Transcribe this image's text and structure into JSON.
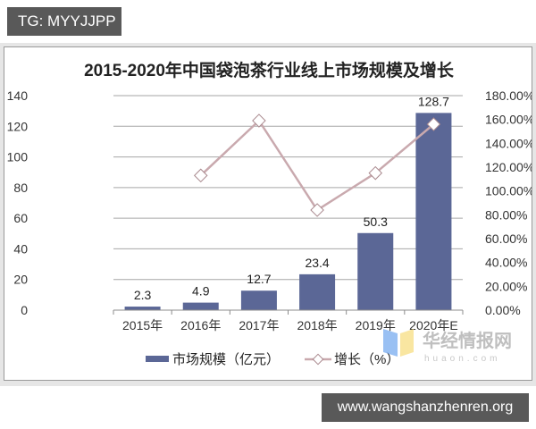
{
  "header_badge": "TG: MYYJJPP",
  "footer_badge": "www.wangshanzhenren.org",
  "watermark": {
    "cn": "华经情报网",
    "en": "huaon.com"
  },
  "colors": {
    "bar": "#5b6796",
    "line": "#c9a9ae",
    "grid": "#a6a6a6"
  },
  "chart_data": {
    "type": "bar",
    "title": "2015-2020年中国袋泡茶行业线上市场规模及增长",
    "categories": [
      "2015年",
      "2016年",
      "2017年",
      "2018年",
      "2019年",
      "2020年E"
    ],
    "series": [
      {
        "name": "市场规模（亿元）",
        "type": "bar",
        "axis": "left",
        "values": [
          2.3,
          4.9,
          12.7,
          23.4,
          50.3,
          128.7
        ]
      },
      {
        "name": "增长（%）",
        "type": "line",
        "axis": "right",
        "values": [
          null,
          113.0,
          159.0,
          84.0,
          115.0,
          156.0
        ]
      }
    ],
    "data_labels": [
      "2.3",
      "4.9",
      "12.7",
      "23.4",
      "50.3",
      "128.7"
    ],
    "left_axis": {
      "ylim": [
        0,
        140
      ],
      "ticks": [
        "0",
        "20",
        "40",
        "60",
        "80",
        "100",
        "120",
        "140"
      ]
    },
    "right_axis": {
      "ylim": [
        0,
        180
      ],
      "ticks": [
        "0.00%",
        "20.00%",
        "40.00%",
        "60.00%",
        "80.00%",
        "100.00%",
        "120.00%",
        "140.00%",
        "160.00%",
        "180.00%"
      ]
    },
    "grid": true,
    "legend_position": "bottom",
    "xlabel": "",
    "ylabel": ""
  }
}
